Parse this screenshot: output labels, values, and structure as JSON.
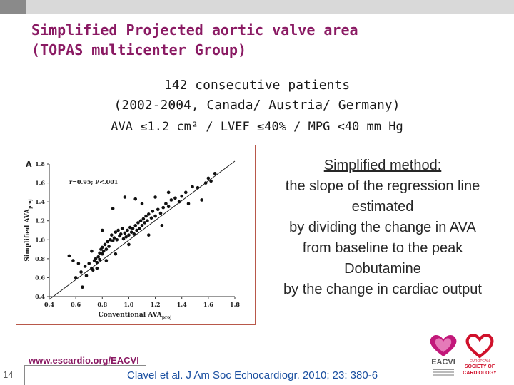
{
  "slide": {
    "title_line1": "Simplified Projected aortic valve area",
    "title_line2": "(TOPAS multicenter Group)",
    "subtitle_line1": "142 consecutive patients",
    "subtitle_line2": "(2002-2004, Canada/ Austria/ Germany)",
    "criteria": "AVA ≤1.2 cm² / LVEF ≤40% / MPG <40 mm Hg",
    "method": {
      "heading": "Simplified method:",
      "lines": [
        "the slope of the regression line",
        "estimated",
        "by dividing the change in AVA",
        "from baseline to the peak",
        "Dobutamine",
        "by the change in cardiac output"
      ]
    },
    "footer": {
      "page_number": "14",
      "url": "www.escardio.org/EACVI",
      "citation_authors": "Clavel et al.",
      "citation_journal": " J Am Soc Echocardiogr. 2010; 23: 380-6"
    },
    "logos": {
      "eacvi": "EACVI",
      "esc_line1": "EUROPEAN",
      "esc_line2": "SOCIETY OF",
      "esc_line3": "CARDIOLOGY"
    },
    "colors": {
      "title": "#8a1a63",
      "citation": "#1a4fa0",
      "chart_border": "#b8584a"
    }
  },
  "chart_data": {
    "type": "scatter",
    "panel_label": "A",
    "annotation": "r=0.95; P<.001",
    "xlabel": "Conventional AVA",
    "xlabel_sub": "proj",
    "ylabel": "Simplified AVA",
    "ylabel_sub": "proj",
    "xlim": [
      0.4,
      1.8
    ],
    "ylim": [
      0.4,
      1.8
    ],
    "x_ticks": [
      "0.4",
      "0.6",
      "0.8",
      "1.0",
      "1.2",
      "1.4",
      "1.6",
      "1.8"
    ],
    "y_ticks": [
      "0.4",
      "0.6",
      "0.8",
      "1.0",
      "1.2",
      "1.4",
      "1.6",
      "1.8"
    ],
    "regression_line": {
      "x": [
        0.4,
        1.8
      ],
      "y": [
        0.37,
        1.83
      ]
    },
    "points": [
      [
        0.55,
        0.83
      ],
      [
        0.58,
        0.78
      ],
      [
        0.6,
        0.6
      ],
      [
        0.62,
        0.75
      ],
      [
        0.64,
        0.66
      ],
      [
        0.67,
        0.72
      ],
      [
        0.7,
        0.75
      ],
      [
        0.72,
        0.7
      ],
      [
        0.73,
        0.68
      ],
      [
        0.74,
        0.78
      ],
      [
        0.75,
        0.8
      ],
      [
        0.76,
        0.76
      ],
      [
        0.77,
        0.82
      ],
      [
        0.78,
        0.79
      ],
      [
        0.78,
        0.86
      ],
      [
        0.79,
        0.9
      ],
      [
        0.8,
        0.85
      ],
      [
        0.8,
        0.92
      ],
      [
        0.81,
        0.88
      ],
      [
        0.82,
        0.95
      ],
      [
        0.83,
        0.9
      ],
      [
        0.84,
        0.98
      ],
      [
        0.85,
        0.93
      ],
      [
        0.86,
        1.0
      ],
      [
        0.87,
        1.05
      ],
      [
        0.88,
        0.99
      ],
      [
        0.89,
        1.02
      ],
      [
        0.9,
        1.08
      ],
      [
        0.91,
        1.0
      ],
      [
        0.92,
        1.1
      ],
      [
        0.93,
        1.04
      ],
      [
        0.94,
        1.06
      ],
      [
        0.95,
        1.12
      ],
      [
        0.96,
        1.01
      ],
      [
        0.97,
        1.07
      ],
      [
        0.98,
        1.03
      ],
      [
        0.99,
        1.1
      ],
      [
        1.0,
        1.05
      ],
      [
        1.01,
        1.13
      ],
      [
        1.02,
        1.08
      ],
      [
        1.03,
        1.12
      ],
      [
        1.04,
        1.06
      ],
      [
        1.05,
        1.15
      ],
      [
        1.06,
        1.1
      ],
      [
        1.07,
        1.18
      ],
      [
        1.08,
        1.12
      ],
      [
        1.09,
        1.2
      ],
      [
        1.1,
        1.15
      ],
      [
        1.11,
        1.22
      ],
      [
        1.12,
        1.18
      ],
      [
        1.13,
        1.25
      ],
      [
        1.14,
        1.2
      ],
      [
        1.15,
        1.27
      ],
      [
        1.17,
        1.23
      ],
      [
        1.18,
        1.3
      ],
      [
        1.2,
        1.25
      ],
      [
        1.22,
        1.32
      ],
      [
        1.24,
        1.28
      ],
      [
        1.26,
        1.34
      ],
      [
        1.28,
        1.38
      ],
      [
        1.3,
        1.35
      ],
      [
        1.32,
        1.42
      ],
      [
        1.35,
        1.44
      ],
      [
        1.38,
        1.4
      ],
      [
        1.4,
        1.46
      ],
      [
        1.43,
        1.5
      ],
      [
        1.45,
        1.38
      ],
      [
        1.48,
        1.56
      ],
      [
        1.52,
        1.55
      ],
      [
        1.55,
        1.42
      ],
      [
        1.58,
        1.6
      ],
      [
        1.6,
        1.65
      ],
      [
        1.62,
        1.62
      ],
      [
        1.65,
        1.7
      ],
      [
        1.2,
        1.45
      ],
      [
        1.05,
        1.43
      ],
      [
        0.97,
        1.45
      ],
      [
        1.1,
        1.38
      ],
      [
        1.3,
        1.5
      ],
      [
        0.88,
        1.33
      ],
      [
        0.8,
        1.1
      ],
      [
        0.72,
        0.88
      ],
      [
        0.68,
        0.62
      ],
      [
        0.65,
        0.5
      ],
      [
        0.9,
        0.85
      ],
      [
        1.0,
        0.95
      ],
      [
        1.15,
        1.05
      ],
      [
        1.25,
        1.15
      ],
      [
        0.83,
        0.78
      ],
      [
        0.76,
        0.7
      ]
    ]
  }
}
